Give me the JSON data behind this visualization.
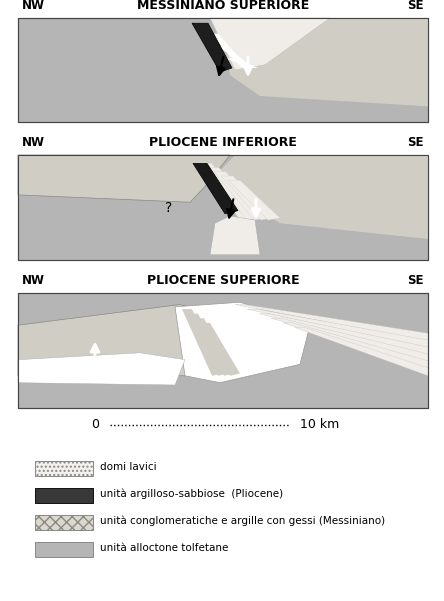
{
  "title1": "MESSINIANO SUPERIORE",
  "title2": "PLIOCENE INFERIORE",
  "title3": "PLIOCENE SUPERIORE",
  "label_nw": "NW",
  "label_se": "SE",
  "scale_label_0": "0",
  "scale_label_10": "10 km",
  "bg_color": "#ffffff",
  "gray_alloctone": "#b5b5b5",
  "gray_light": "#d0cdc5",
  "white_domi": "#f0ede8",
  "legend_items": [
    {
      "label": "domi lavici",
      "facecolor": "#f5f2ee",
      "edgecolor": "#888888",
      "hatch": "...."
    },
    {
      "label": "unità argilloso-sabbiose  (Pliocene)",
      "facecolor": "#383838",
      "edgecolor": "#111111",
      "hatch": ""
    },
    {
      "label": "unità conglomeratiche e argille con gessi (Messiniano)",
      "facecolor": "#ddd8cc",
      "edgecolor": "#888888",
      "hatch": "xxx"
    },
    {
      "label": "unità alloctone tolfetane",
      "facecolor": "#b5b5b5",
      "edgecolor": "#888888",
      "hatch": ""
    }
  ]
}
